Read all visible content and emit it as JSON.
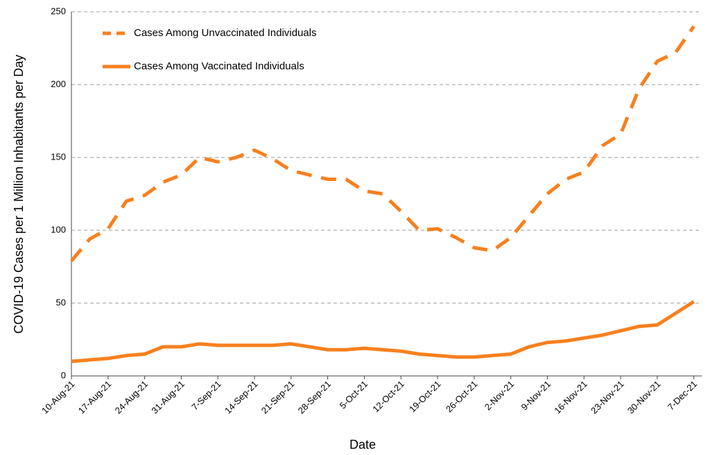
{
  "chart_data": {
    "type": "line",
    "x_label": "Date",
    "y_label": "COVID-19 Cases per 1 Million Inhabitants per Day",
    "categories": [
      "10-Aug-21",
      null,
      "17-Aug-21",
      null,
      "24-Aug-21",
      null,
      "31-Aug-21",
      null,
      "7-Sep-21",
      null,
      "14-Sep-21",
      null,
      "21-Sep-21",
      null,
      "28-Sep-21",
      null,
      "5-Oct-21",
      null,
      "12-Oct-21",
      null,
      "19-Oct-21",
      null,
      "26-Oct-21",
      null,
      "2-Nov-21",
      null,
      "9-Nov-21",
      null,
      "16-Nov-21",
      null,
      "23-Nov-21",
      null,
      "30-Nov-21",
      null,
      "7-Dec-21"
    ],
    "series": [
      {
        "name": "Cases Among Unvaccinated Individuals",
        "color": "#f7801e",
        "style": "dashed",
        "values": [
          79,
          94,
          101,
          120,
          124,
          133,
          138,
          150,
          147,
          150,
          155,
          149,
          141,
          138,
          135,
          135,
          127,
          125,
          113,
          100,
          101,
          95,
          88,
          86,
          95,
          110,
          125,
          135,
          140,
          158,
          166,
          197,
          216,
          222,
          240
        ]
      },
      {
        "name": "Cases Among Vaccinated Individuals",
        "color": "#f7801e",
        "style": "solid",
        "values": [
          10,
          11,
          12,
          14,
          15,
          20,
          20,
          22,
          21,
          21,
          21,
          21,
          22,
          20,
          18,
          18,
          19,
          18,
          17,
          15,
          14,
          13,
          13,
          14,
          15,
          20,
          23,
          24,
          26,
          28,
          31,
          34,
          35,
          43,
          51
        ]
      }
    ],
    "ylim": [
      0,
      250
    ],
    "yticks": [
      0,
      50,
      100,
      150,
      200,
      250
    ],
    "grid": true,
    "legend": "upper left"
  }
}
